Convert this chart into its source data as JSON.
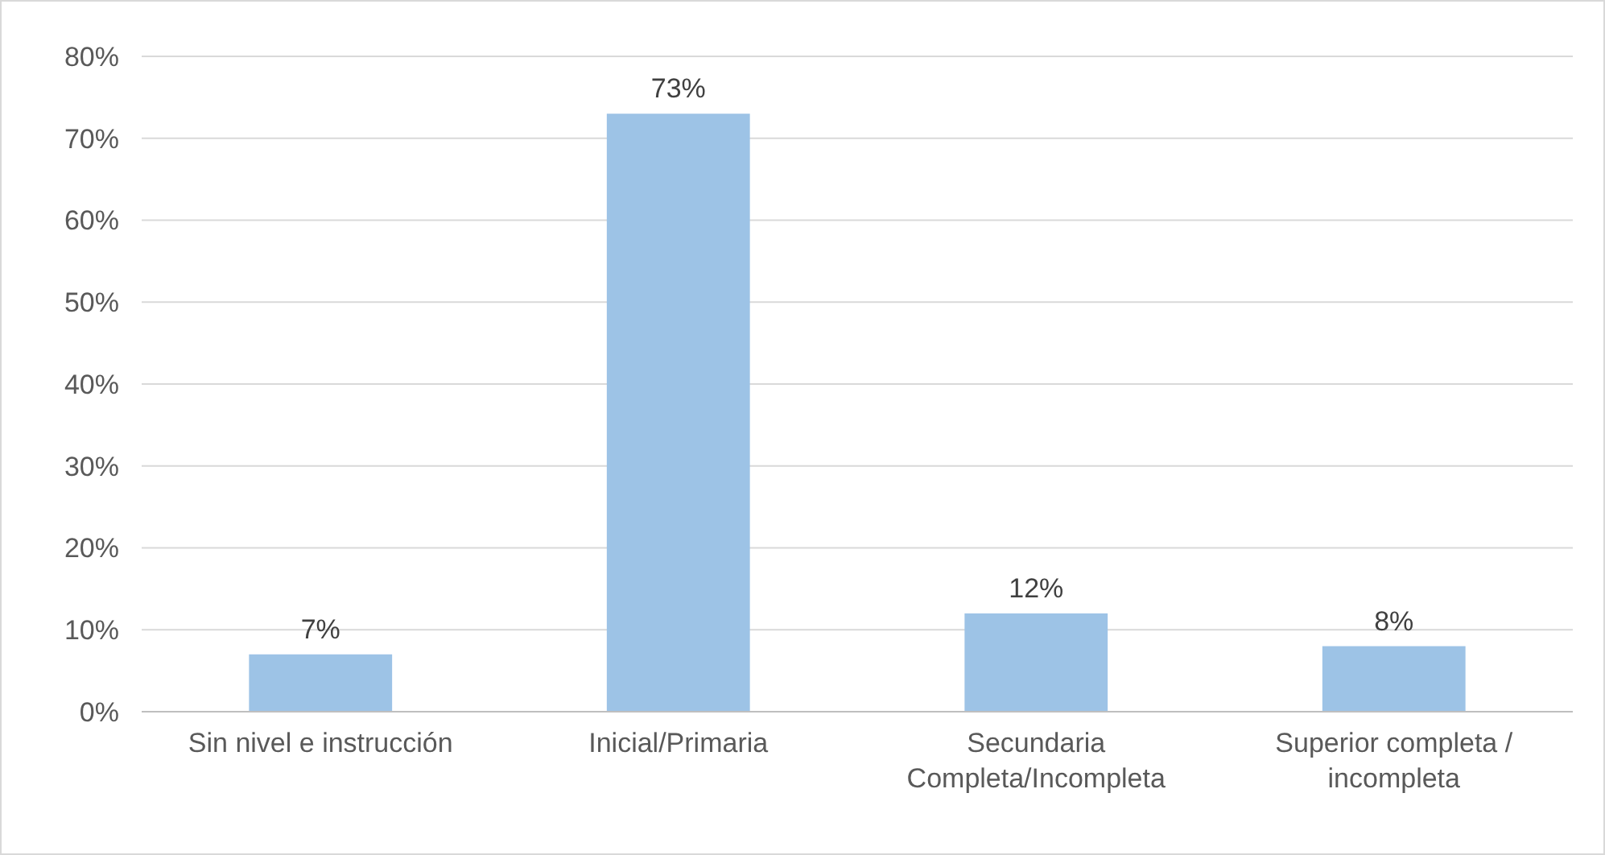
{
  "chart_data": {
    "type": "bar",
    "categories": [
      "Sin nivel e instrucción",
      "Inicial/Primaria",
      "Secundaria Completa/Incompleta",
      "Superior completa / incompleta"
    ],
    "values": [
      7,
      73,
      12,
      8
    ],
    "color": "#9dc3e6",
    "data_labels": true,
    "value_labels": [
      "7%",
      "73%",
      "12%",
      "8%"
    ],
    "ylim": [
      0,
      80
    ],
    "yticks": [
      {
        "value": 0,
        "label": "0%"
      },
      {
        "value": 10,
        "label": "10%"
      },
      {
        "value": 20,
        "label": "20%"
      },
      {
        "value": 30,
        "label": "30%"
      },
      {
        "value": 40,
        "label": "40%"
      },
      {
        "value": 50,
        "label": "50%"
      },
      {
        "value": 60,
        "label": "60%"
      },
      {
        "value": 70,
        "label": "70%"
      },
      {
        "value": 80,
        "label": "80%"
      }
    ],
    "grid": "y"
  }
}
